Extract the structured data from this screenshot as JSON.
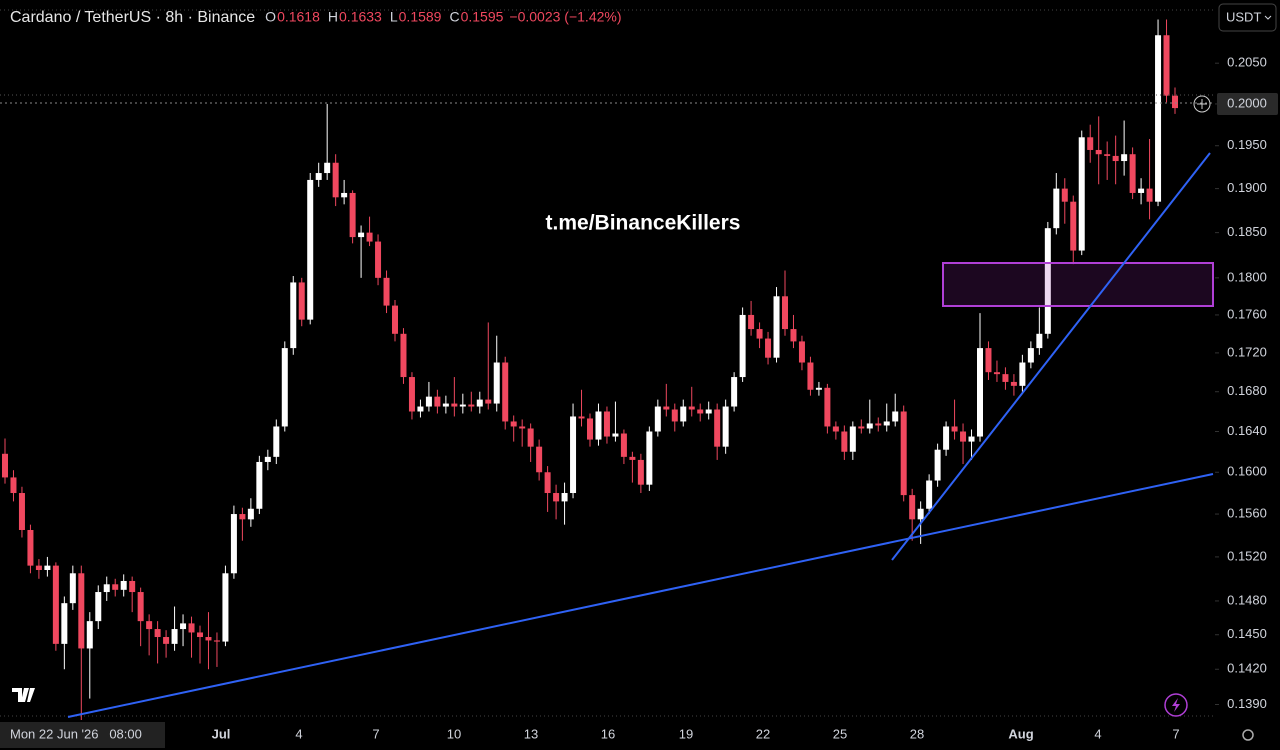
{
  "header": {
    "title": "Cardano / TetherUS · 8h · Binance",
    "labels": [
      "O",
      "H",
      "L",
      "C"
    ],
    "change": "−0.0023 (−1.42%)"
  },
  "currency": "USDT",
  "watermark": "t.me/BinanceKillers",
  "crosshair_date": "Mon 22 Jun '26   08:00",
  "x_labels": [
    "Jul",
    "4",
    "7",
    "10",
    "13",
    "16",
    "19",
    "22",
    "25",
    "28",
    "Aug",
    "4",
    "7"
  ],
  "chart_data": {
    "type": "candlestick",
    "log_scale": true,
    "up_color": "#ffffff",
    "down_color": "#f0485f",
    "ylim": [
      0.1377,
      0.213
    ],
    "yticks": [
      {
        "value": 0.205,
        "label": "0.2050"
      },
      {
        "value": 0.2,
        "label": "0.2000"
      },
      {
        "value": 0.195,
        "label": "0.1950"
      },
      {
        "value": 0.19,
        "label": "0.1900"
      },
      {
        "value": 0.185,
        "label": "0.1850"
      },
      {
        "value": 0.18,
        "label": "0.1800"
      },
      {
        "value": 0.176,
        "label": "0.1760"
      },
      {
        "value": 0.172,
        "label": "0.1720"
      },
      {
        "value": 0.168,
        "label": "0.1680"
      },
      {
        "value": 0.164,
        "label": "0.1640"
      },
      {
        "value": 0.16,
        "label": "0.1600"
      },
      {
        "value": 0.156,
        "label": "0.1560"
      },
      {
        "value": 0.152,
        "label": "0.1520"
      },
      {
        "value": 0.148,
        "label": "0.1480"
      },
      {
        "value": 0.145,
        "label": "0.1450"
      },
      {
        "value": 0.142,
        "label": "0.1420"
      },
      {
        "value": 0.139,
        "label": "0.1390"
      }
    ],
    "ohlc": [
      [
        0.1618,
        0.1633,
        0.1589,
        0.1595
      ],
      [
        0.1595,
        0.1602,
        0.1572,
        0.158
      ],
      [
        0.158,
        0.1586,
        0.1538,
        0.1545
      ],
      [
        0.1545,
        0.155,
        0.1505,
        0.1512
      ],
      [
        0.1512,
        0.1518,
        0.15,
        0.1508
      ],
      [
        0.1508,
        0.152,
        0.1502,
        0.1512
      ],
      [
        0.1512,
        0.1515,
        0.1436,
        0.1442
      ],
      [
        0.1442,
        0.1484,
        0.142,
        0.1478
      ],
      [
        0.1478,
        0.1512,
        0.1472,
        0.1505
      ],
      [
        0.1505,
        0.1512,
        0.1377,
        0.1438
      ],
      [
        0.1438,
        0.147,
        0.1395,
        0.1462
      ],
      [
        0.1462,
        0.1494,
        0.1455,
        0.1488
      ],
      [
        0.1488,
        0.1502,
        0.148,
        0.1495
      ],
      [
        0.1495,
        0.15,
        0.1484,
        0.149
      ],
      [
        0.149,
        0.1504,
        0.1484,
        0.1498
      ],
      [
        0.1498,
        0.1502,
        0.147,
        0.1488
      ],
      [
        0.1488,
        0.1492,
        0.144,
        0.1462
      ],
      [
        0.1462,
        0.1468,
        0.1432,
        0.1455
      ],
      [
        0.1455,
        0.1462,
        0.1425,
        0.1448
      ],
      [
        0.1448,
        0.1454,
        0.143,
        0.1442
      ],
      [
        0.1442,
        0.1475,
        0.1436,
        0.1455
      ],
      [
        0.1455,
        0.1468,
        0.144,
        0.146
      ],
      [
        0.146,
        0.1466,
        0.143,
        0.1452
      ],
      [
        0.1452,
        0.1458,
        0.1425,
        0.1448
      ],
      [
        0.1448,
        0.147,
        0.142,
        0.1445
      ],
      [
        0.1445,
        0.1452,
        0.1422,
        0.1444
      ],
      [
        0.1444,
        0.1512,
        0.144,
        0.1505
      ],
      [
        0.1505,
        0.1568,
        0.15,
        0.156
      ],
      [
        0.156,
        0.1566,
        0.1535,
        0.1555
      ],
      [
        0.1555,
        0.1575,
        0.1548,
        0.1565
      ],
      [
        0.1565,
        0.1616,
        0.156,
        0.161
      ],
      [
        0.161,
        0.1622,
        0.1602,
        0.1615
      ],
      [
        0.1615,
        0.1652,
        0.1608,
        0.1645
      ],
      [
        0.1645,
        0.1732,
        0.164,
        0.1725
      ],
      [
        0.1725,
        0.1802,
        0.1718,
        0.1795
      ],
      [
        0.1795,
        0.18,
        0.1748,
        0.1755
      ],
      [
        0.1755,
        0.1918,
        0.175,
        0.191
      ],
      [
        0.191,
        0.193,
        0.1902,
        0.1918
      ],
      [
        0.1918,
        0.2,
        0.191,
        0.193
      ],
      [
        0.193,
        0.194,
        0.188,
        0.189
      ],
      [
        0.189,
        0.191,
        0.1882,
        0.1895
      ],
      [
        0.1895,
        0.1898,
        0.1838,
        0.1845
      ],
      [
        0.1845,
        0.1858,
        0.18,
        0.185
      ],
      [
        0.185,
        0.1868,
        0.1835,
        0.184
      ],
      [
        0.184,
        0.1848,
        0.1792,
        0.18
      ],
      [
        0.18,
        0.1808,
        0.1762,
        0.177
      ],
      [
        0.177,
        0.1776,
        0.1732,
        0.174
      ],
      [
        0.174,
        0.1746,
        0.1688,
        0.1695
      ],
      [
        0.1695,
        0.17,
        0.1652,
        0.166
      ],
      [
        0.166,
        0.1672,
        0.1654,
        0.1665
      ],
      [
        0.1665,
        0.169,
        0.166,
        0.1675
      ],
      [
        0.1675,
        0.1682,
        0.1658,
        0.1665
      ],
      [
        0.1665,
        0.1676,
        0.1658,
        0.1668
      ],
      [
        0.1668,
        0.1695,
        0.1655,
        0.1665
      ],
      [
        0.1665,
        0.1678,
        0.1658,
        0.1667
      ],
      [
        0.1667,
        0.168,
        0.166,
        0.1665
      ],
      [
        0.1665,
        0.168,
        0.1658,
        0.1672
      ],
      [
        0.1672,
        0.1752,
        0.1662,
        0.1668
      ],
      [
        0.1668,
        0.1738,
        0.166,
        0.171
      ],
      [
        0.171,
        0.1716,
        0.1642,
        0.165
      ],
      [
        0.165,
        0.1656,
        0.163,
        0.1645
      ],
      [
        0.1645,
        0.1652,
        0.1625,
        0.1643
      ],
      [
        0.1643,
        0.1648,
        0.161,
        0.1625
      ],
      [
        0.1625,
        0.1632,
        0.1592,
        0.16
      ],
      [
        0.16,
        0.1606,
        0.1562,
        0.158
      ],
      [
        0.158,
        0.1588,
        0.1555,
        0.1572
      ],
      [
        0.1572,
        0.159,
        0.155,
        0.158
      ],
      [
        0.158,
        0.1668,
        0.1575,
        0.1655
      ],
      [
        0.1655,
        0.1682,
        0.1645,
        0.1653
      ],
      [
        0.1653,
        0.1658,
        0.1625,
        0.1632
      ],
      [
        0.1632,
        0.1668,
        0.1626,
        0.166
      ],
      [
        0.166,
        0.1665,
        0.1628,
        0.1635
      ],
      [
        0.1635,
        0.167,
        0.163,
        0.1638
      ],
      [
        0.1638,
        0.1642,
        0.1608,
        0.1615
      ],
      [
        0.1615,
        0.162,
        0.159,
        0.1612
      ],
      [
        0.1612,
        0.1618,
        0.158,
        0.1588
      ],
      [
        0.1588,
        0.1645,
        0.1582,
        0.164
      ],
      [
        0.164,
        0.1672,
        0.1635,
        0.1665
      ],
      [
        0.1665,
        0.1688,
        0.1655,
        0.1662
      ],
      [
        0.1662,
        0.1668,
        0.164,
        0.165
      ],
      [
        0.165,
        0.1672,
        0.1645,
        0.1665
      ],
      [
        0.1665,
        0.1685,
        0.1655,
        0.1662
      ],
      [
        0.1662,
        0.1668,
        0.165,
        0.1658
      ],
      [
        0.1658,
        0.167,
        0.1652,
        0.1662
      ],
      [
        0.1662,
        0.1668,
        0.1612,
        0.1625
      ],
      [
        0.1625,
        0.1672,
        0.1618,
        0.1665
      ],
      [
        0.1665,
        0.17,
        0.166,
        0.1695
      ],
      [
        0.1695,
        0.1768,
        0.169,
        0.176
      ],
      [
        0.176,
        0.1775,
        0.1738,
        0.1745
      ],
      [
        0.1745,
        0.1752,
        0.1725,
        0.1735
      ],
      [
        0.1735,
        0.1742,
        0.1708,
        0.1715
      ],
      [
        0.1715,
        0.179,
        0.171,
        0.178
      ],
      [
        0.178,
        0.1808,
        0.1738,
        0.1745
      ],
      [
        0.1745,
        0.176,
        0.1725,
        0.1732
      ],
      [
        0.1732,
        0.1738,
        0.1702,
        0.171
      ],
      [
        0.171,
        0.1716,
        0.1676,
        0.1682
      ],
      [
        0.1682,
        0.169,
        0.1676,
        0.1684
      ],
      [
        0.1684,
        0.1688,
        0.1638,
        0.1645
      ],
      [
        0.1645,
        0.165,
        0.1632,
        0.164
      ],
      [
        0.164,
        0.1646,
        0.1612,
        0.162
      ],
      [
        0.162,
        0.165,
        0.1612,
        0.1645
      ],
      [
        0.1645,
        0.1652,
        0.1638,
        0.1643
      ],
      [
        0.1643,
        0.1672,
        0.1638,
        0.1648
      ],
      [
        0.1648,
        0.1654,
        0.164,
        0.1646
      ],
      [
        0.1646,
        0.1668,
        0.164,
        0.165
      ],
      [
        0.165,
        0.1678,
        0.1645,
        0.166
      ],
      [
        0.166,
        0.1666,
        0.1572,
        0.1578
      ],
      [
        0.1578,
        0.1584,
        0.1535,
        0.1555
      ],
      [
        0.1555,
        0.1572,
        0.1532,
        0.1565
      ],
      [
        0.1565,
        0.1598,
        0.156,
        0.1592
      ],
      [
        0.1592,
        0.1628,
        0.1586,
        0.1622
      ],
      [
        0.1622,
        0.165,
        0.1616,
        0.1645
      ],
      [
        0.1645,
        0.1672,
        0.1632,
        0.164
      ],
      [
        0.164,
        0.1648,
        0.1608,
        0.163
      ],
      [
        0.163,
        0.1642,
        0.1612,
        0.1635
      ],
      [
        0.1635,
        0.1762,
        0.163,
        0.1725
      ],
      [
        0.1725,
        0.1732,
        0.1692,
        0.17
      ],
      [
        0.17,
        0.1712,
        0.169,
        0.1698
      ],
      [
        0.1698,
        0.1705,
        0.1682,
        0.169
      ],
      [
        0.169,
        0.1698,
        0.1676,
        0.1686
      ],
      [
        0.1686,
        0.1718,
        0.168,
        0.171
      ],
      [
        0.171,
        0.1732,
        0.1704,
        0.1725
      ],
      [
        0.1725,
        0.1768,
        0.1718,
        0.174
      ],
      [
        0.174,
        0.1862,
        0.1735,
        0.1855
      ],
      [
        0.1855,
        0.1918,
        0.1848,
        0.19
      ],
      [
        0.19,
        0.1912,
        0.186,
        0.1885
      ],
      [
        0.1885,
        0.1892,
        0.1815,
        0.183
      ],
      [
        0.183,
        0.1968,
        0.1825,
        0.196
      ],
      [
        0.196,
        0.1975,
        0.193,
        0.1945
      ],
      [
        0.1945,
        0.1985,
        0.1905,
        0.194
      ],
      [
        0.194,
        0.1955,
        0.191,
        0.1938
      ],
      [
        0.1938,
        0.1962,
        0.1905,
        0.1932
      ],
      [
        0.1932,
        0.198,
        0.1915,
        0.194
      ],
      [
        0.194,
        0.1948,
        0.1888,
        0.1895
      ],
      [
        0.1895,
        0.1912,
        0.1882,
        0.19
      ],
      [
        0.19,
        0.1958,
        0.1865,
        0.1885
      ],
      [
        0.1885,
        0.2105,
        0.188,
        0.2085
      ],
      [
        0.2085,
        0.2105,
        0.2002,
        0.201
      ],
      [
        0.201,
        0.202,
        0.1988,
        0.1995
      ]
    ]
  }
}
